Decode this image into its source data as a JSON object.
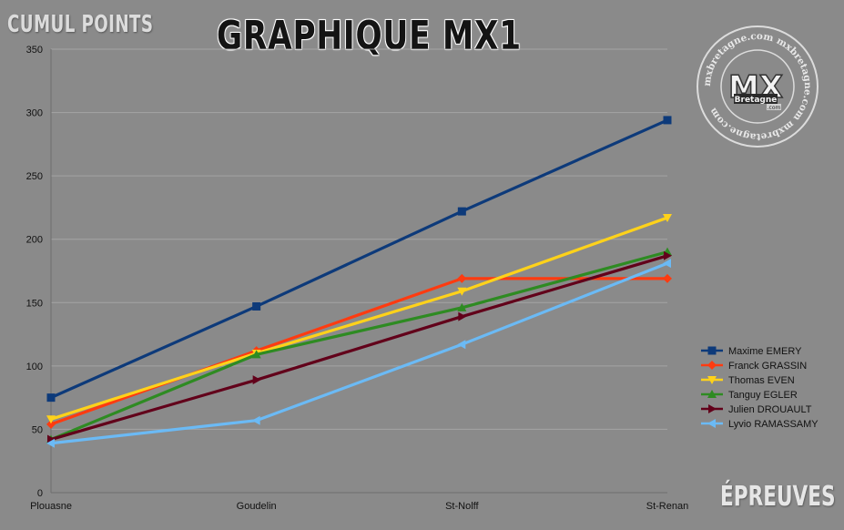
{
  "chart_data": {
    "type": "line",
    "title": "GRAPHIQUE MX1",
    "ylabel": "CUMUL POINTS",
    "xlabel": "ÉPREUVES",
    "categories": [
      "Plouasne",
      "Goudelin",
      "St-Nolff",
      "St-Renan"
    ],
    "ylim": [
      0,
      350
    ],
    "yticks": [
      0,
      50,
      100,
      150,
      200,
      250,
      300,
      350
    ],
    "grid": true,
    "legend_position": "right",
    "series": [
      {
        "name": "Maxime EMERY",
        "values": [
          75,
          147,
          222,
          294
        ],
        "color": "#0d3a7a",
        "marker": "square"
      },
      {
        "name": "Franck GRASSIN",
        "values": [
          54,
          112,
          169,
          169
        ],
        "color": "#ff3b10",
        "marker": "diamond"
      },
      {
        "name": "Thomas EVEN",
        "values": [
          58,
          110,
          159,
          217
        ],
        "color": "#ffd21a",
        "marker": "triangle-down"
      },
      {
        "name": "Tanguy EGLER",
        "values": [
          42,
          109,
          146,
          190
        ],
        "color": "#2e8b22",
        "marker": "triangle-up"
      },
      {
        "name": "Julien DROUAULT",
        "values": [
          42,
          89,
          139,
          187
        ],
        "color": "#62001a",
        "marker": "triangle-right"
      },
      {
        "name": "Lyvio RAMASSAMY",
        "values": [
          39,
          57,
          117,
          181
        ],
        "color": "#6bbaf5",
        "marker": "triangle-left"
      }
    ]
  },
  "logo": {
    "text": "MX",
    "subtext": "Bretagne",
    "badge": ".com",
    "ring_text": "mxbretagne.com  mxbretagne.com  mxbretagne.com"
  }
}
